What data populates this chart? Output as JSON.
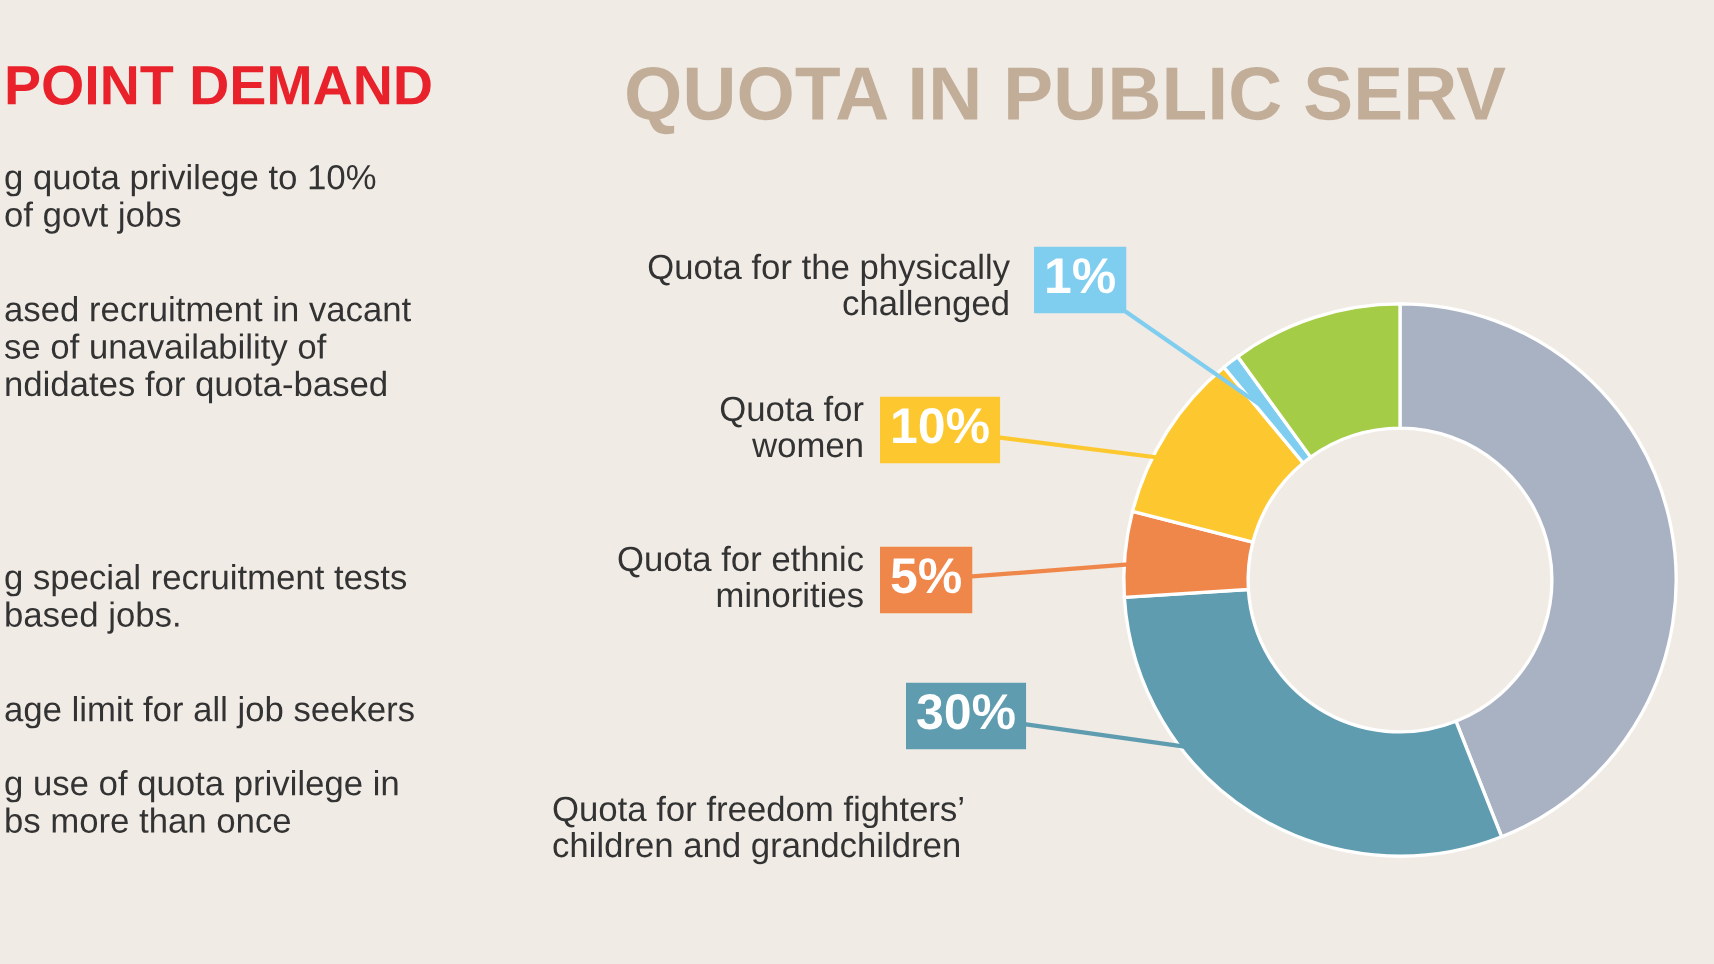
{
  "chart_data": {
    "type": "donut",
    "title": "QUOTA IN PUBLIC SERV",
    "categories": [
      null,
      "Quota for freedom fighters’\nchildren and grandchildren",
      "Quota for ethnic\nminorities",
      "Quota for\nwomen",
      "Quota for the physically\nchallenged",
      null
    ],
    "values": [
      44,
      30,
      5,
      10,
      1,
      10
    ],
    "value_labels": [
      null,
      "30%",
      "5%",
      "10%",
      "1%",
      null
    ],
    "colors": [
      "#a9b2c3",
      "#5f9cb0",
      "#f0874a",
      "#fdc82f",
      "#7fcdef",
      "#a5cc46"
    ],
    "annotations": [
      "POINT DEMAND",
      "g quota privilege to 10%\nof govt jobs",
      "ased recruitment in vacant\nse of unavailability of\nndidates for quota-based",
      "g special recruitment tests\nbased jobs.",
      "age limit for all job seekers",
      "g use of quota privilege in\nbs more than once"
    ],
    "legend": "left"
  }
}
